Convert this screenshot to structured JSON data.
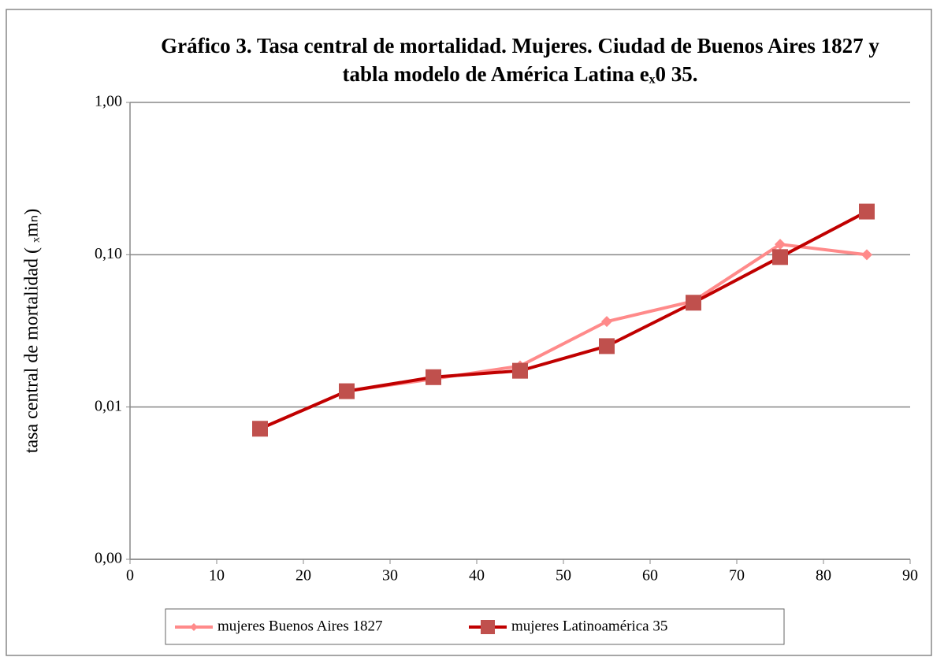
{
  "chart_data": {
    "type": "line",
    "title": "Gráfico 3. Tasa central de mortalidad. Mujeres. Ciudad de Buenos Aires 1827 y tabla modelo de América Latina eₓ0 35.",
    "y_label": "tasa central de mortalidad ( ₓmₙ)",
    "x": [
      15,
      25,
      35,
      45,
      55,
      65,
      75,
      85
    ],
    "series": [
      {
        "name": "mujeres Buenos Aires 1827",
        "color": "#ff8a8a",
        "marker": "diamond",
        "values": [
          0.0072,
          0.0127,
          0.0153,
          0.0186,
          0.0364,
          0.0496,
          0.117,
          0.1
        ]
      },
      {
        "name": "mujeres Latinoamérica 35",
        "color": "#c00000",
        "marker_color": "#c0504d",
        "marker": "square",
        "values": [
          0.0072,
          0.0127,
          0.0157,
          0.0173,
          0.0251,
          0.0484,
          0.0965,
          0.192
        ]
      }
    ],
    "xlim": [
      0,
      90
    ],
    "xticks": [
      0,
      10,
      20,
      30,
      40,
      50,
      60,
      70,
      80,
      90
    ],
    "ylim": [
      0.001,
      1
    ],
    "yscale": "log",
    "yticks": [
      {
        "value": 0.001,
        "label": "0,00"
      },
      {
        "value": 0.01,
        "label": "0,01"
      },
      {
        "value": 0.1,
        "label": "0,10"
      },
      {
        "value": 1,
        "label": "1,00"
      }
    ],
    "grid": true,
    "legend": "bottom"
  }
}
